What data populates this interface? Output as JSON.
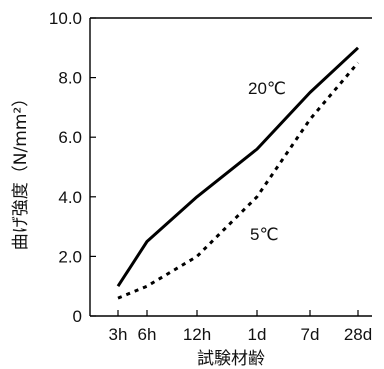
{
  "chart_data": {
    "type": "line",
    "title": "",
    "xlabel": "試験材齢",
    "ylabel": "曲げ強度（N/mm²）",
    "categories": [
      "3h",
      "6h",
      "12h",
      "1d",
      "7d",
      "28d"
    ],
    "ylim": [
      0,
      10
    ],
    "yticks": [
      "0",
      "2.0",
      "4.0",
      "6.0",
      "8.0",
      "10.0"
    ],
    "grid": false,
    "legend": "inline labels",
    "series": [
      {
        "name": "20℃",
        "style": "solid",
        "color": "#000000",
        "values": [
          1.0,
          2.5,
          4.0,
          5.6,
          7.5,
          9.0
        ]
      },
      {
        "name": "5℃",
        "style": "dotted",
        "color": "#000000",
        "values": [
          0.6,
          1.0,
          2.0,
          4.0,
          6.6,
          8.5
        ]
      }
    ]
  }
}
